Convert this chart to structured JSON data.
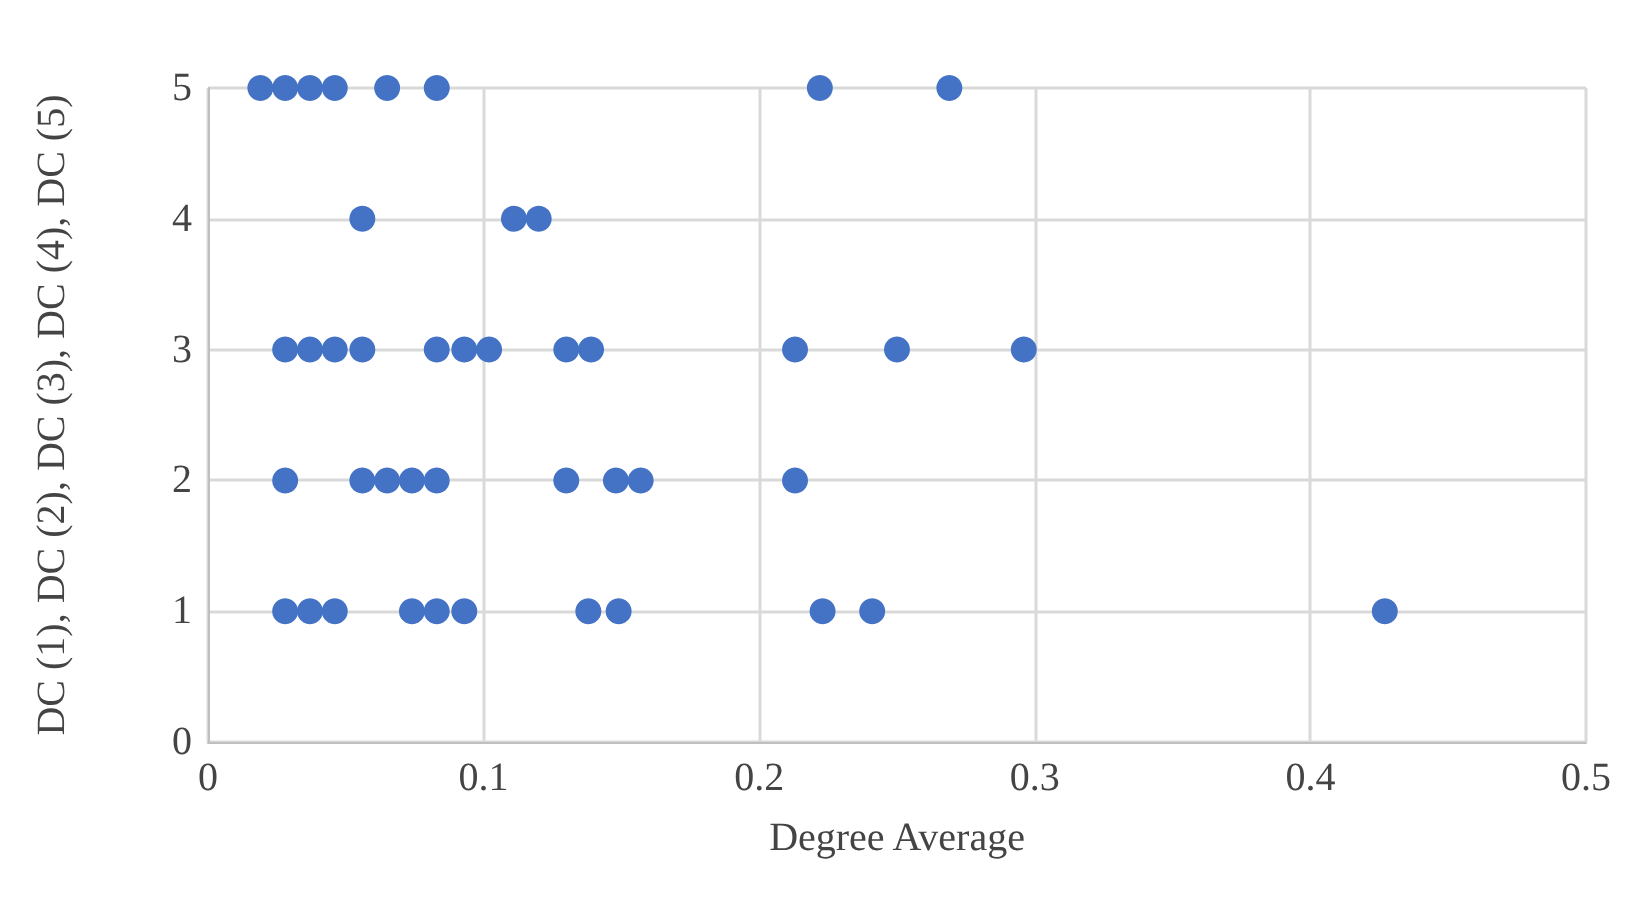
{
  "chart_data": {
    "type": "scatter",
    "xlabel": "Degree Average",
    "ylabel": "DC (1), DC (2), DC (3), DC (4), DC (5)",
    "series": [
      {
        "color": "#4472c4",
        "x": [
          0.019,
          0.028,
          0.037,
          0.046,
          0.065,
          0.083,
          0.222,
          0.269,
          0.056,
          0.111,
          0.12,
          0.028,
          0.037,
          0.046,
          0.056,
          0.083,
          0.093,
          0.102,
          0.13,
          0.139,
          0.213,
          0.25,
          0.296,
          0.028,
          0.056,
          0.065,
          0.074,
          0.083,
          0.13,
          0.148,
          0.157,
          0.213,
          0.028,
          0.037,
          0.046,
          0.074,
          0.083,
          0.093,
          0.138,
          0.149,
          0.223,
          0.241,
          0.427
        ],
        "values": [
          5,
          5,
          5,
          5,
          5,
          5,
          5,
          5,
          4,
          4,
          4,
          3,
          3,
          3,
          3,
          3,
          3,
          3,
          3,
          3,
          3,
          3,
          3,
          2,
          2,
          2,
          2,
          2,
          2,
          2,
          2,
          2,
          1,
          1,
          1,
          1,
          1,
          1,
          1,
          1,
          1,
          1,
          1
        ]
      }
    ],
    "xlim": [
      0,
      0.5
    ],
    "xticks": [
      0,
      0.1,
      0.2,
      0.3,
      0.4,
      0.5
    ],
    "ylim": [
      0,
      5
    ],
    "yticks": [
      0,
      1,
      2,
      3,
      4,
      5
    ],
    "grid": true,
    "marker": "circle"
  }
}
